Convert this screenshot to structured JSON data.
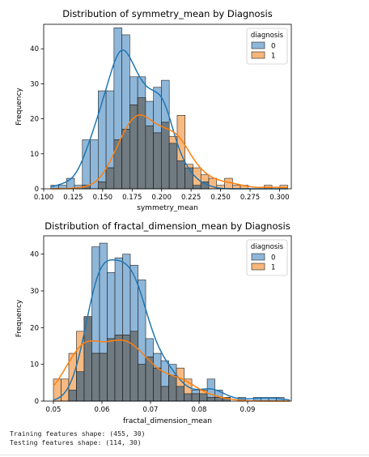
{
  "colors": {
    "class_0": "#1f77b4",
    "class_1": "#ff7f0e",
    "bar_0_fill": "#8fb7d9",
    "bar_1_fill": "#f7b67b",
    "overlap_fill": "#6f7a81",
    "edge": "#222222"
  },
  "chart_data": [
    {
      "type": "histogram",
      "title": "Distribution of symmetry_mean by Diagnosis",
      "xlabel": "symmetry_mean",
      "ylabel": "Frequency",
      "xlim": [
        0.1,
        0.31
      ],
      "ylim": [
        0,
        47
      ],
      "xticks": [
        0.1,
        0.125,
        0.15,
        0.175,
        0.2,
        0.225,
        0.25,
        0.275,
        0.3
      ],
      "xtick_labels": [
        "0.100",
        "0.125",
        "0.150",
        "0.175",
        "0.200",
        "0.225",
        "0.250",
        "0.275",
        "0.300"
      ],
      "yticks": [
        0,
        10,
        20,
        30,
        40
      ],
      "ytick_labels": [
        "0",
        "10",
        "20",
        "30",
        "40"
      ],
      "grid": false,
      "legend": {
        "title": "diagnosis",
        "position": "top-right",
        "labels": [
          "0",
          "1"
        ]
      },
      "bin_start": 0.106,
      "bin_width": 0.0067,
      "series": [
        {
          "name": "0",
          "kde": true,
          "values": [
            1,
            1,
            3,
            1,
            14,
            14,
            28,
            28,
            46,
            44,
            32,
            32,
            25,
            29,
            31,
            13,
            8,
            6,
            1,
            2,
            0,
            0,
            0,
            0,
            0,
            0,
            0,
            0,
            0,
            0
          ]
        },
        {
          "name": "1",
          "kde": true,
          "values": [
            0,
            0,
            0,
            0,
            1,
            0,
            2,
            6,
            14,
            17,
            24,
            26,
            18,
            16,
            19,
            15,
            21,
            7,
            6,
            4,
            3,
            1,
            3,
            1,
            1,
            0,
            0,
            1,
            0,
            1
          ]
        }
      ]
    },
    {
      "type": "histogram",
      "title": "Distribution of fractal_dimension_mean by Diagnosis",
      "xlabel": "fractal_dimension_mean",
      "ylabel": "Frequency",
      "xlim": [
        0.048,
        0.099
      ],
      "ylim": [
        0,
        45
      ],
      "xticks": [
        0.05,
        0.06,
        0.07,
        0.08,
        0.09
      ],
      "xtick_labels": [
        "0.05",
        "0.06",
        "0.07",
        "0.08",
        "0.09"
      ],
      "yticks": [
        0,
        10,
        20,
        30,
        40
      ],
      "ytick_labels": [
        "0",
        "10",
        "20",
        "30",
        "40"
      ],
      "grid": false,
      "legend": {
        "title": "diagnosis",
        "position": "top-right",
        "labels": [
          "0",
          "1"
        ]
      },
      "bin_start": 0.05,
      "bin_width": 0.001584,
      "series": [
        {
          "name": "0",
          "kde": true,
          "values": [
            0,
            0,
            3,
            8,
            23,
            42,
            43,
            35,
            39,
            40,
            37,
            33,
            17,
            13,
            11,
            10,
            4,
            2,
            3,
            2,
            6,
            3,
            1,
            0,
            1,
            0,
            1,
            1,
            1,
            1,
            0
          ]
        },
        {
          "name": "1",
          "kde": true,
          "values": [
            6,
            6,
            13,
            19,
            23,
            13,
            13,
            17,
            18,
            18,
            19,
            10,
            12,
            9,
            4,
            7,
            9,
            6,
            2,
            3,
            1,
            1,
            1,
            0,
            0,
            0,
            0,
            0,
            0,
            0,
            0
          ]
        }
      ]
    }
  ],
  "console": {
    "lines": [
      "Training features shape: (455, 30)",
      "Testing features shape: (114, 30)"
    ]
  }
}
